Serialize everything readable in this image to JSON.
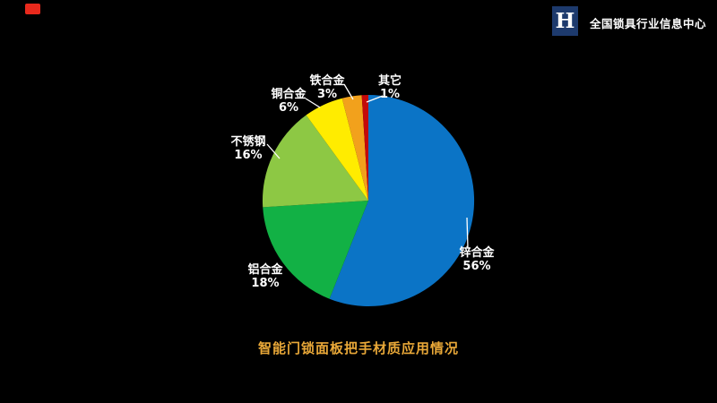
{
  "header": {
    "recording_dot_color": "#e8291c",
    "logo_glyph": "H",
    "logo_bg": "#1d3a6d",
    "org_name": "全国锁具行业信息中心"
  },
  "chart_data": {
    "type": "pie",
    "title": "智能门锁面板把手材质应用情况",
    "title_color": "#e9a838",
    "label_color": "#ffffff",
    "legend_position": "none",
    "start_angle_deg": 0,
    "direction": "clockwise",
    "slices": [
      {
        "key": "zinc-alloy",
        "label": "锌合金",
        "value": 56,
        "pct": "56%",
        "color": "#0b74c6"
      },
      {
        "key": "aluminum-alloy",
        "label": "铝合金",
        "value": 18,
        "pct": "18%",
        "color": "#12b145"
      },
      {
        "key": "stainless-steel",
        "label": "不锈钢",
        "value": 16,
        "pct": "16%",
        "color": "#8dc844"
      },
      {
        "key": "copper-alloy",
        "label": "铜合金",
        "value": 6,
        "pct": "6%",
        "color": "#ffec00"
      },
      {
        "key": "iron-alloy",
        "label": "铁合金",
        "value": 3,
        "pct": "3%",
        "color": "#f2a11c"
      },
      {
        "key": "other",
        "label": "其它",
        "value": 1,
        "pct": "1%",
        "color": "#c40909"
      }
    ]
  }
}
